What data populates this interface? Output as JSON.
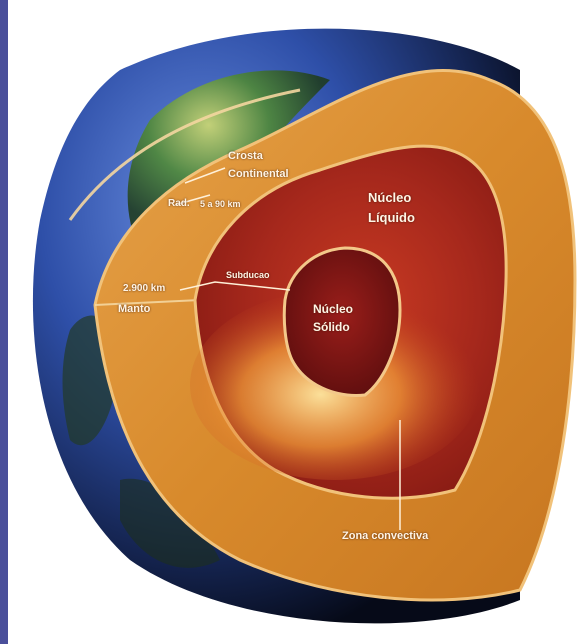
{
  "labels": {
    "crust_title_line1": "Crosta",
    "crust_title_line2": "Continental",
    "crust_depth_prefix": "Rad.",
    "crust_depth": "5 a 90 km",
    "mantle_depth": "2.900 km",
    "mantle_name": "Manto",
    "subduction": "Subducao",
    "outer_core_line1": "Núcleo",
    "outer_core_line2": "Líquido",
    "inner_core_line1": "Núcleo",
    "inner_core_line2": "Sólido",
    "convective_zone": "Zona convectiva"
  },
  "colors": {
    "frame": "#4a4f9a",
    "ocean": "#2e4fa8",
    "mantle": "#d98a2e",
    "outer_core": "#a6281c",
    "inner_core": "#7a1414",
    "label_text": "#fff5e6"
  }
}
